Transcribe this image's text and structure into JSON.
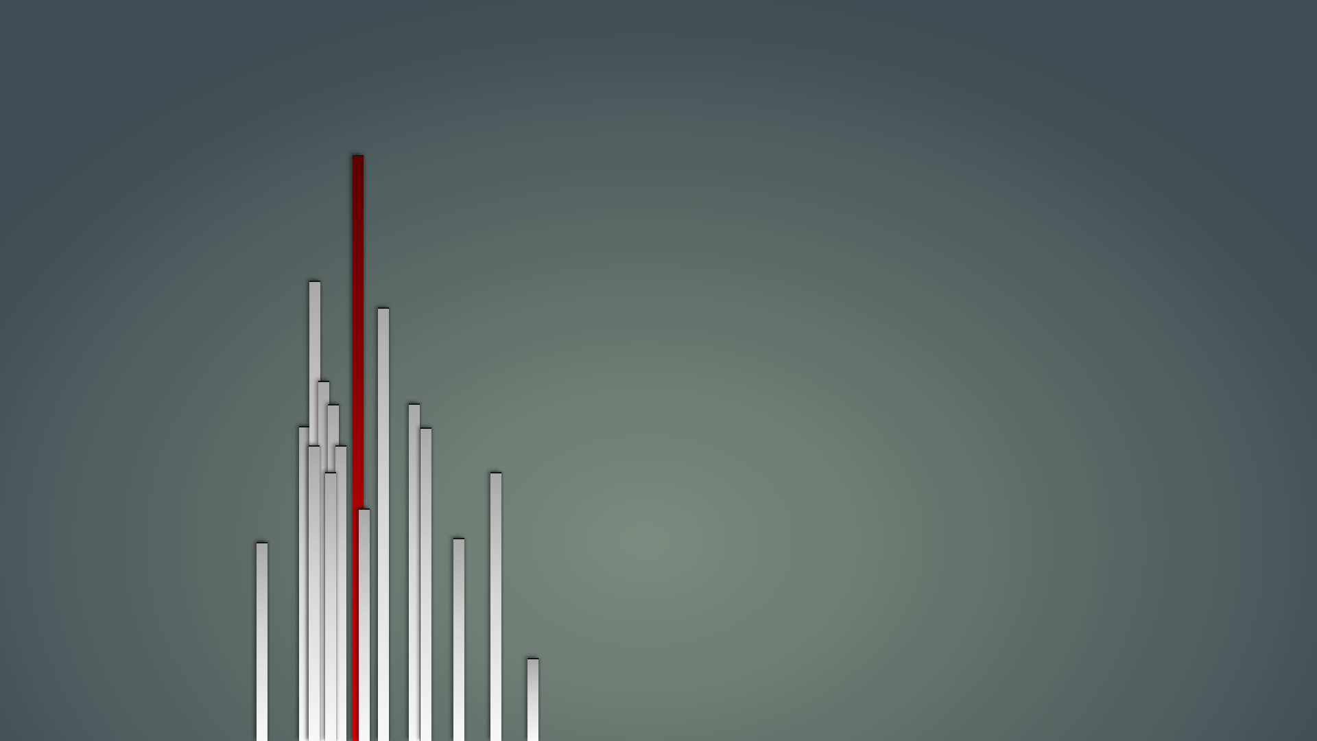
{
  "wallpaper": {
    "style": "minimal vertical bars on slate-gray gradient",
    "colors": {
      "background_center": "#7c897f",
      "background_edge": "#3f4c51",
      "bar_top": "#a9a9a9",
      "bar_bottom": "#f8f8f8",
      "accent_top": "#5c0000",
      "accent_bottom": "#e00000",
      "bar_cap": "#151515"
    }
  }
}
